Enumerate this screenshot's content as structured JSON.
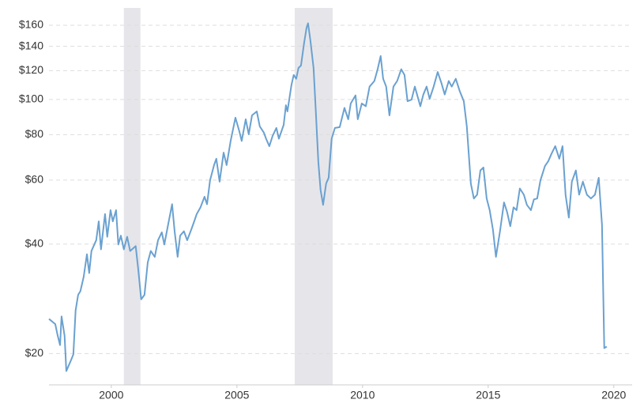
{
  "chart_data": {
    "type": "line",
    "log_scale": true,
    "grid": true,
    "color": "#6aa1d0",
    "recession_color": "#e6e6ea",
    "recessions": [
      [
        2000.5,
        2001.16
      ],
      [
        2007.3,
        2008.81
      ]
    ],
    "xlim": [
      1997.52,
      2020.73
    ],
    "xticks": [
      2000,
      2005,
      2010,
      2015,
      2020
    ],
    "ylim": [
      16.4,
      178.6
    ],
    "yticks": [
      {
        "value": 20,
        "label": "$20"
      },
      {
        "value": 40,
        "label": "$40"
      },
      {
        "value": 60,
        "label": "$60"
      },
      {
        "value": 80,
        "label": "$80"
      },
      {
        "value": 100,
        "label": "$100"
      },
      {
        "value": 120,
        "label": "$120"
      },
      {
        "value": 140,
        "label": "$140"
      },
      {
        "value": 160,
        "label": "$160"
      }
    ],
    "x": [
      1997.52,
      1997.77,
      1997.86,
      1997.96,
      1998.02,
      1998.14,
      1998.21,
      1998.4,
      1998.49,
      1998.58,
      1998.68,
      1998.77,
      1998.9,
      1999.03,
      1999.12,
      1999.21,
      1999.4,
      1999.5,
      1999.59,
      1999.75,
      1999.84,
      1999.97,
      2000.06,
      2000.19,
      2000.28,
      2000.38,
      2000.5,
      2000.63,
      2000.75,
      2000.97,
      2001.07,
      2001.19,
      2001.32,
      2001.45,
      2001.57,
      2001.73,
      2001.86,
      2002.01,
      2002.11,
      2002.26,
      2002.42,
      2002.52,
      2002.64,
      2002.74,
      2002.89,
      2003.02,
      2003.18,
      2003.3,
      2003.4,
      2003.55,
      2003.71,
      2003.81,
      2003.93,
      2004.09,
      2004.18,
      2004.31,
      2004.47,
      2004.59,
      2004.75,
      2004.94,
      2005.09,
      2005.19,
      2005.35,
      2005.47,
      2005.6,
      2005.79,
      2005.91,
      2006.07,
      2006.16,
      2006.29,
      2006.42,
      2006.57,
      2006.67,
      2006.86,
      2006.95,
      2007.01,
      2007.17,
      2007.26,
      2007.36,
      2007.45,
      2007.55,
      2007.67,
      2007.77,
      2007.83,
      2007.92,
      2008.05,
      2008.14,
      2008.24,
      2008.33,
      2008.43,
      2008.55,
      2008.65,
      2008.77,
      2008.9,
      2009.09,
      2009.28,
      2009.43,
      2009.53,
      2009.72,
      2009.81,
      2009.97,
      2010.13,
      2010.28,
      2010.47,
      2010.6,
      2010.72,
      2010.82,
      2010.94,
      2011.07,
      2011.23,
      2011.38,
      2011.54,
      2011.67,
      2011.79,
      2011.95,
      2012.08,
      2012.3,
      2012.42,
      2012.55,
      2012.67,
      2012.83,
      2012.99,
      2013.14,
      2013.27,
      2013.43,
      2013.55,
      2013.71,
      2013.87,
      2014.03,
      2014.15,
      2014.31,
      2014.43,
      2014.56,
      2014.69,
      2014.81,
      2014.94,
      2015.06,
      2015.19,
      2015.31,
      2015.47,
      2015.63,
      2015.75,
      2015.88,
      2016.01,
      2016.13,
      2016.26,
      2016.42,
      2016.54,
      2016.7,
      2016.82,
      2016.95,
      2017.08,
      2017.26,
      2017.39,
      2017.52,
      2017.67,
      2017.83,
      2017.96,
      2018.08,
      2018.21,
      2018.33,
      2018.49,
      2018.62,
      2018.77,
      2018.93,
      2019.09,
      2019.25,
      2019.4,
      2019.53,
      2019.62,
      2019.72
    ],
    "values": [
      24.9,
      24.1,
      22.5,
      21.1,
      25.3,
      22.4,
      17.9,
      19.2,
      19.9,
      26.3,
      29.0,
      29.7,
      32.5,
      37.5,
      33.3,
      38.3,
      41.0,
      46.2,
      38.7,
      48.4,
      41.9,
      49.6,
      46.2,
      49.6,
      39.9,
      42.2,
      38.7,
      41.9,
      38.3,
      39.5,
      34.2,
      28.2,
      29.0,
      35.6,
      38.3,
      36.9,
      41.0,
      43.1,
      39.9,
      45.2,
      51.5,
      43.4,
      36.9,
      42.2,
      43.4,
      41.0,
      43.8,
      46.2,
      48.4,
      50.5,
      54.0,
      51.5,
      59.9,
      66.0,
      68.7,
      59.4,
      71.4,
      66.0,
      76.9,
      89.1,
      82.0,
      76.9,
      88.2,
      80.2,
      90.4,
      92.7,
      84.3,
      81.1,
      78.0,
      74.4,
      79.4,
      83.5,
      78.0,
      85.1,
      96.4,
      92.7,
      109.6,
      116.8,
      114.0,
      122.1,
      124.0,
      142.5,
      157.3,
      162.0,
      146.0,
      122.1,
      92.7,
      67.3,
      56.3,
      51.3,
      58.7,
      60.9,
      78.0,
      83.5,
      83.9,
      94.8,
      88.2,
      97.5,
      102.6,
      88.2,
      97.5,
      95.8,
      108.5,
      112.4,
      121.1,
      131.7,
      114.0,
      108.5,
      90.4,
      108.5,
      112.5,
      121.1,
      116.8,
      98.9,
      99.9,
      108.5,
      95.8,
      103.2,
      108.5,
      100.4,
      108.5,
      119.0,
      110.9,
      103.2,
      112.4,
      108.5,
      114.0,
      105.3,
      98.9,
      84.3,
      58.7,
      53.4,
      54.7,
      63.8,
      65.0,
      53.4,
      49.6,
      43.8,
      36.9,
      43.4,
      52.1,
      49.1,
      44.8,
      50.5,
      49.6,
      56.9,
      54.7,
      51.3,
      49.6,
      53.1,
      53.4,
      59.9,
      65.6,
      67.6,
      70.9,
      74.4,
      68.7,
      74.4,
      54.7,
      47.3,
      59.4,
      63.8,
      54.7,
      59.4,
      54.7,
      53.4,
      54.7,
      60.9,
      45.2,
      20.7,
      20.9
    ]
  }
}
